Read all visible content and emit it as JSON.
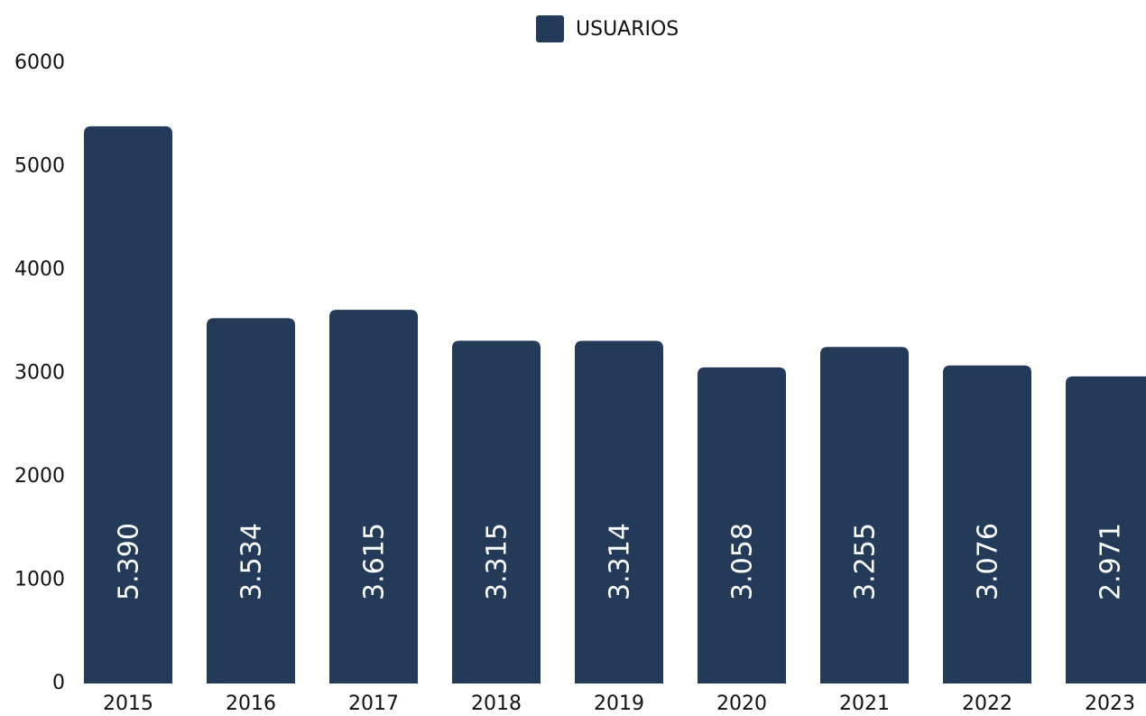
{
  "chart_data": {
    "type": "bar",
    "legend": "USUARIOS",
    "categories": [
      "2015",
      "2016",
      "2017",
      "2018",
      "2019",
      "2020",
      "2021",
      "2022",
      "2023"
    ],
    "values": [
      5390,
      3534,
      3615,
      3315,
      3314,
      3058,
      3255,
      3076,
      2971
    ],
    "value_labels": [
      "5.390",
      "3.534",
      "3.615",
      "3.315",
      "3.314",
      "3.058",
      "3.255",
      "3.076",
      "2.971"
    ],
    "color": "#233a59",
    "ylim": [
      0,
      6000
    ],
    "yticks": [
      0,
      1000,
      2000,
      3000,
      4000,
      5000,
      6000
    ],
    "grid": false
  }
}
